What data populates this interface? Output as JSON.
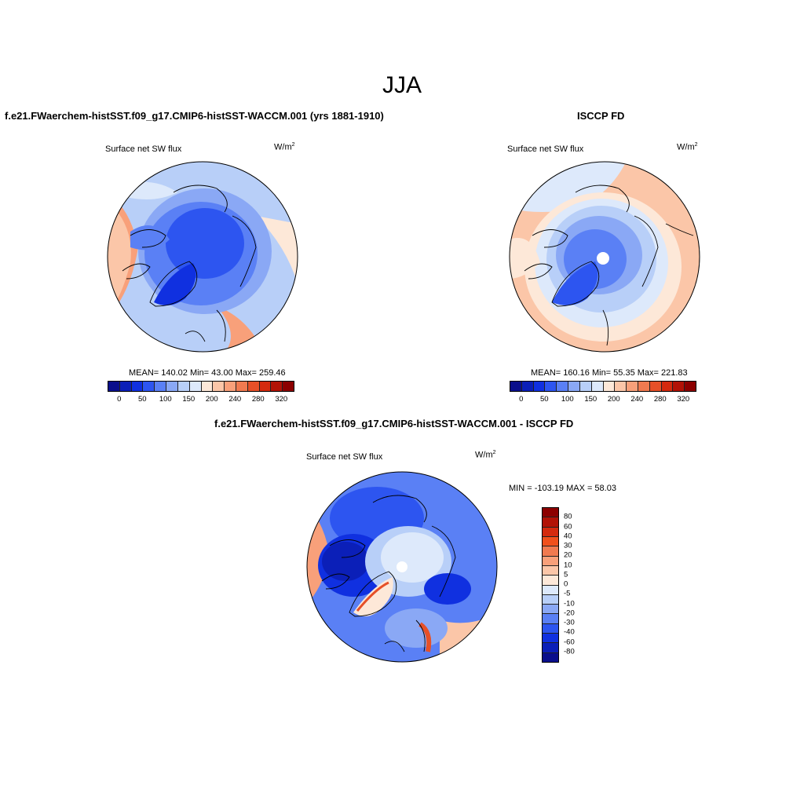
{
  "season": "JJA",
  "panel_left": {
    "title": "f.e21.FWaerchem-histSST.f09_g17.CMIP6-histSST-WACCM.001 (yrs 1881-1910)",
    "variable": "Surface net SW flux",
    "units_base": "W/m",
    "units_exp": "2",
    "stats": "MEAN= 140.02  Min=  43.00  Max= 259.46"
  },
  "panel_right": {
    "title": "ISCCP FD",
    "variable": "Surface net SW flux",
    "units_base": "W/m",
    "units_exp": "2",
    "stats": "MEAN= 160.16  Min=  55.35  Max= 221.83"
  },
  "panel_diff": {
    "title": "f.e21.FWaerchem-histSST.f09_g17.CMIP6-histSST-WACCM.001 - ISCCP FD",
    "variable": "Surface net SW flux",
    "units_base": "W/m",
    "units_exp": "2",
    "stats": "MIN = -103.19 MAX =  58.03"
  },
  "colorbar_abs": {
    "colors": [
      "#0a0f8c",
      "#0b1fb8",
      "#1030e0",
      "#2d55f0",
      "#5a80f5",
      "#8aa8f5",
      "#b8cff8",
      "#dde9fb",
      "#fde8d8",
      "#fbc6a8",
      "#f8a07a",
      "#f07a50",
      "#e65028",
      "#d42a0e",
      "#b21206",
      "#8c0000"
    ],
    "tick_labels": [
      "0",
      "50",
      "100",
      "150",
      "200",
      "240",
      "280",
      "320"
    ]
  },
  "colorbar_diff": {
    "colors": [
      "#8c0000",
      "#b21206",
      "#d42a0e",
      "#f0501c",
      "#f07a50",
      "#f8a07a",
      "#fbc6a8",
      "#fde8d8",
      "#dde9fb",
      "#b8cff8",
      "#8aa8f5",
      "#5a80f5",
      "#2d55f0",
      "#1030e0",
      "#0b1fb8",
      "#0a0f8c"
    ],
    "tick_labels": [
      "80",
      "60",
      "40",
      "30",
      "20",
      "10",
      "5",
      "0",
      "-5",
      "-10",
      "-20",
      "-30",
      "-40",
      "-60",
      "-80"
    ]
  }
}
